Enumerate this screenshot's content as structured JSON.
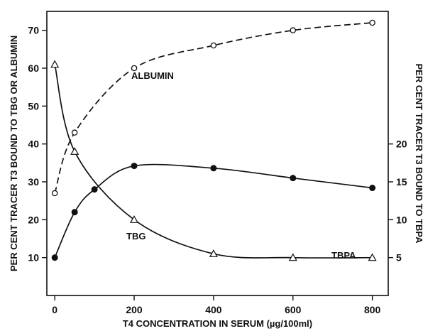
{
  "chart_data": {
    "type": "line",
    "xlabel": "T4 CONCENTRATION IN SERUM (µg/100ml)",
    "ylabel_left": "PER CENT TRACER T3 BOUND TO TBG OR ALBUMIN",
    "ylabel_right": "PER CENT TRACER T3 BOUND TO TBPA",
    "xlim": [
      -20,
      840
    ],
    "ylim_left": [
      0,
      75
    ],
    "ylim_right": [
      0,
      37.5
    ],
    "x_ticks": [
      0,
      200,
      400,
      600,
      800
    ],
    "y_ticks_left": [
      10,
      20,
      30,
      40,
      50,
      60,
      70
    ],
    "y_ticks_right": [
      5,
      10,
      15,
      20
    ],
    "grid": false,
    "series": [
      {
        "name": "ALBUMIN",
        "axis": "left",
        "marker": "open-circle",
        "line_style": "dashed",
        "x": [
          0,
          50,
          200,
          400,
          600,
          800
        ],
        "y": [
          27,
          43,
          60,
          66,
          70,
          72
        ]
      },
      {
        "name": "TBG",
        "axis": "left",
        "marker": "open-triangle",
        "line_style": "solid",
        "x": [
          0,
          50,
          200,
          400,
          600,
          800
        ],
        "y": [
          61,
          38,
          20,
          11,
          10,
          10
        ]
      },
      {
        "name": "TBPA",
        "axis": "right",
        "marker": "filled-circle",
        "line_style": "solid",
        "x": [
          0,
          50,
          100,
          200,
          400,
          600,
          800
        ],
        "y": [
          5,
          11,
          14,
          17.1,
          16.8,
          15.5,
          14.2
        ]
      }
    ]
  }
}
